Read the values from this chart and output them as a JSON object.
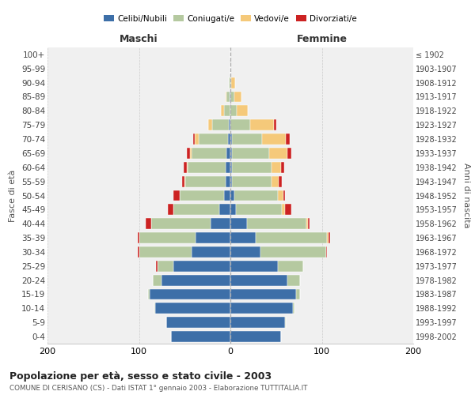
{
  "age_groups": [
    "100+",
    "95-99",
    "90-94",
    "85-89",
    "80-84",
    "75-79",
    "70-74",
    "65-69",
    "60-64",
    "55-59",
    "50-54",
    "45-49",
    "40-44",
    "35-39",
    "30-34",
    "25-29",
    "20-24",
    "15-19",
    "10-14",
    "5-9",
    "0-4"
  ],
  "birth_years": [
    "≤ 1902",
    "1903-1907",
    "1908-1912",
    "1913-1917",
    "1918-1922",
    "1923-1927",
    "1928-1932",
    "1933-1937",
    "1938-1942",
    "1943-1947",
    "1948-1952",
    "1953-1957",
    "1958-1962",
    "1963-1967",
    "1968-1972",
    "1973-1977",
    "1978-1982",
    "1983-1987",
    "1988-1992",
    "1993-1997",
    "1998-2002"
  ],
  "maschi_celibi": [
    0,
    0,
    0,
    1,
    0,
    2,
    3,
    4,
    5,
    5,
    7,
    12,
    22,
    38,
    42,
    62,
    75,
    88,
    82,
    70,
    65
  ],
  "maschi_coniugati": [
    0,
    0,
    2,
    3,
    7,
    18,
    32,
    38,
    42,
    44,
    48,
    50,
    65,
    62,
    58,
    18,
    10,
    2,
    1,
    0,
    0
  ],
  "maschi_vedovi": [
    0,
    0,
    0,
    1,
    3,
    4,
    4,
    2,
    1,
    1,
    0,
    0,
    0,
    0,
    0,
    0,
    0,
    0,
    0,
    0,
    0
  ],
  "maschi_divorziati": [
    0,
    0,
    0,
    0,
    0,
    0,
    2,
    4,
    3,
    3,
    7,
    6,
    6,
    1,
    1,
    1,
    0,
    0,
    0,
    0,
    0
  ],
  "femmine_nubili": [
    0,
    0,
    0,
    0,
    0,
    0,
    2,
    2,
    2,
    2,
    4,
    6,
    18,
    28,
    33,
    52,
    62,
    72,
    68,
    60,
    55
  ],
  "femmine_coniugate": [
    0,
    0,
    1,
    4,
    7,
    22,
    33,
    40,
    43,
    43,
    48,
    50,
    65,
    78,
    72,
    28,
    14,
    4,
    2,
    1,
    0
  ],
  "femmine_vedove": [
    0,
    0,
    4,
    8,
    12,
    26,
    26,
    20,
    10,
    8,
    6,
    4,
    2,
    1,
    0,
    0,
    0,
    0,
    0,
    0,
    0
  ],
  "femmine_divorziate": [
    0,
    0,
    0,
    0,
    0,
    2,
    4,
    5,
    4,
    3,
    2,
    7,
    2,
    2,
    1,
    0,
    0,
    0,
    0,
    0,
    0
  ],
  "color_celibi": "#3d6fa8",
  "color_coniugati": "#b5c9a0",
  "color_vedovi": "#f5c97a",
  "color_divorziati": "#cc2222",
  "xlim": 200,
  "title": "Popolazione per età, sesso e stato civile - 2003",
  "subtitle": "COMUNE DI CERISANO (CS) - Dati ISTAT 1° gennaio 2003 - Elaborazione TUTTITALIA.IT",
  "ylabel_left": "Fasce di età",
  "ylabel_right": "Anni di nascita",
  "header_maschi": "Maschi",
  "header_femmine": "Femmine",
  "bg_color": "#f0f0f0",
  "legend_labels": [
    "Celibi/Nubili",
    "Coniugati/e",
    "Vedovi/e",
    "Divorziati/e"
  ]
}
